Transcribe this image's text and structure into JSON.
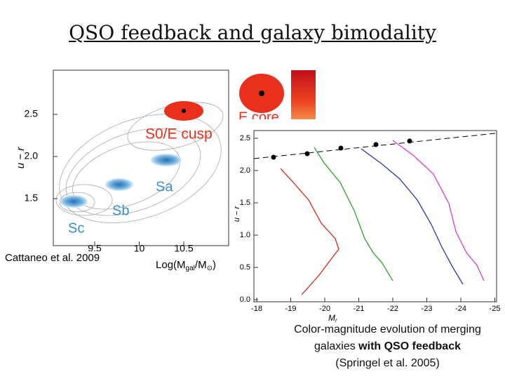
{
  "title": "QSO feedback and galaxy bimodality",
  "left_figure": {
    "y_label": "u − r",
    "x_label": [
      "Log(M",
      "gal",
      "/M",
      "⊙",
      ")"
    ],
    "yticks": [
      "2.5",
      "2.0",
      "1.5"
    ],
    "xticks": [
      "9.5",
      "10",
      "10.5"
    ],
    "labels": {
      "e_core": "E core",
      "s0_cusp": "S0/E cusp",
      "sa": "Sa",
      "sb": "Sb",
      "sc": "Sc"
    },
    "caption": "Cattaneo et al. 2009"
  },
  "right_figure": {
    "y_label": "u − r",
    "x_label": [
      "M",
      "r"
    ],
    "yticks": [
      "2.5",
      "2.0",
      "1.5",
      "1.0",
      "0.5",
      "0.0"
    ],
    "xticks": [
      "-18",
      "-19",
      "-20",
      "-21",
      "-22",
      "-23",
      "-24",
      "-25"
    ],
    "caption": [
      "Color-magnitude evolution of merging",
      "galaxies ",
      "with QSO feedback",
      "(Springel et al. 2005)"
    ]
  }
}
